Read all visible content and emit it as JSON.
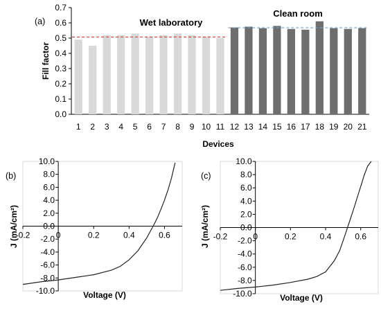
{
  "chart_data": [
    {
      "type": "bar",
      "panel_label": "(a)",
      "xlabel": "Devices",
      "ylabel": "Fill factor",
      "ylim": [
        0,
        0.7
      ],
      "yticks": [
        "0.0",
        "0.1",
        "0.2",
        "0.3",
        "0.4",
        "0.5",
        "0.6",
        "0.7"
      ],
      "categories": [
        "1",
        "2",
        "3",
        "4",
        "5",
        "6",
        "7",
        "8",
        "9",
        "10",
        "11",
        "12",
        "13",
        "14",
        "15",
        "16",
        "17",
        "18",
        "19",
        "20",
        "21"
      ],
      "values": [
        0.49,
        0.45,
        0.52,
        0.52,
        0.53,
        0.51,
        0.52,
        0.53,
        0.52,
        0.51,
        0.5,
        0.57,
        0.575,
        0.565,
        0.58,
        0.56,
        0.555,
        0.61,
        0.565,
        0.56,
        0.565
      ],
      "groups": [
        {
          "label": "Wet laboratory",
          "first": 1,
          "last": 11,
          "bar_color": "#d9d9d9",
          "mean": 0.507,
          "mean_line_color": "#e0392b"
        },
        {
          "label": "Clean room",
          "first": 12,
          "last": 21,
          "bar_color": "#6e6e6e",
          "mean": 0.568,
          "mean_line_color": "#6a9fd8"
        }
      ],
      "grid": false
    },
    {
      "type": "line",
      "panel_label": "(b)",
      "xlabel": "Voltage (V)",
      "ylabel": "J (mA/cm²)",
      "xlim": [
        -0.2,
        0.7
      ],
      "ylim": [
        -10,
        10
      ],
      "xticks": [
        "-0.2",
        "0",
        "0.2",
        "0.4",
        "0.6"
      ],
      "yticks": [
        "10.0",
        "8.0",
        "6.0",
        "4.0",
        "2.0",
        "0.0",
        "-2.0",
        "-4.0",
        "-6.0",
        "-8.0",
        "-10.0"
      ],
      "series": [
        {
          "x": [
            -0.2,
            -0.1,
            0.0,
            0.1,
            0.2,
            0.3,
            0.35,
            0.4,
            0.45,
            0.5,
            0.52,
            0.54,
            0.56,
            0.58,
            0.6,
            0.62,
            0.64,
            0.66
          ],
          "y": [
            -9.0,
            -8.6,
            -8.3,
            -7.9,
            -7.5,
            -6.8,
            -6.2,
            -5.2,
            -3.8,
            -1.8,
            -0.8,
            0.2,
            1.3,
            2.6,
            4.0,
            5.6,
            7.5,
            9.8
          ]
        }
      ]
    },
    {
      "type": "line",
      "panel_label": "(c)",
      "xlabel": "Voltage (V)",
      "ylabel": "J (mA/cm²)",
      "xlim": [
        -0.2,
        0.7
      ],
      "ylim": [
        -10,
        10
      ],
      "xticks": [
        "-0.2",
        "0",
        "0.2",
        "0.4",
        "0.6"
      ],
      "yticks": [
        "10.0",
        "8.0",
        "6.0",
        "4.0",
        "2.0",
        "0.0",
        "-2.0",
        "-4.0",
        "-6.0",
        "-8.0",
        "-10.0"
      ],
      "series": [
        {
          "x": [
            -0.2,
            -0.1,
            0.0,
            0.1,
            0.2,
            0.3,
            0.35,
            0.4,
            0.45,
            0.48,
            0.5,
            0.52,
            0.54,
            0.56,
            0.58,
            0.6,
            0.62,
            0.64,
            0.66
          ],
          "y": [
            -9.5,
            -9.2,
            -9.0,
            -8.7,
            -8.3,
            -7.8,
            -7.4,
            -6.7,
            -5.0,
            -3.5,
            -2.0,
            -0.4,
            1.2,
            2.8,
            4.5,
            6.2,
            7.9,
            9.3,
            10.0
          ]
        }
      ]
    }
  ]
}
